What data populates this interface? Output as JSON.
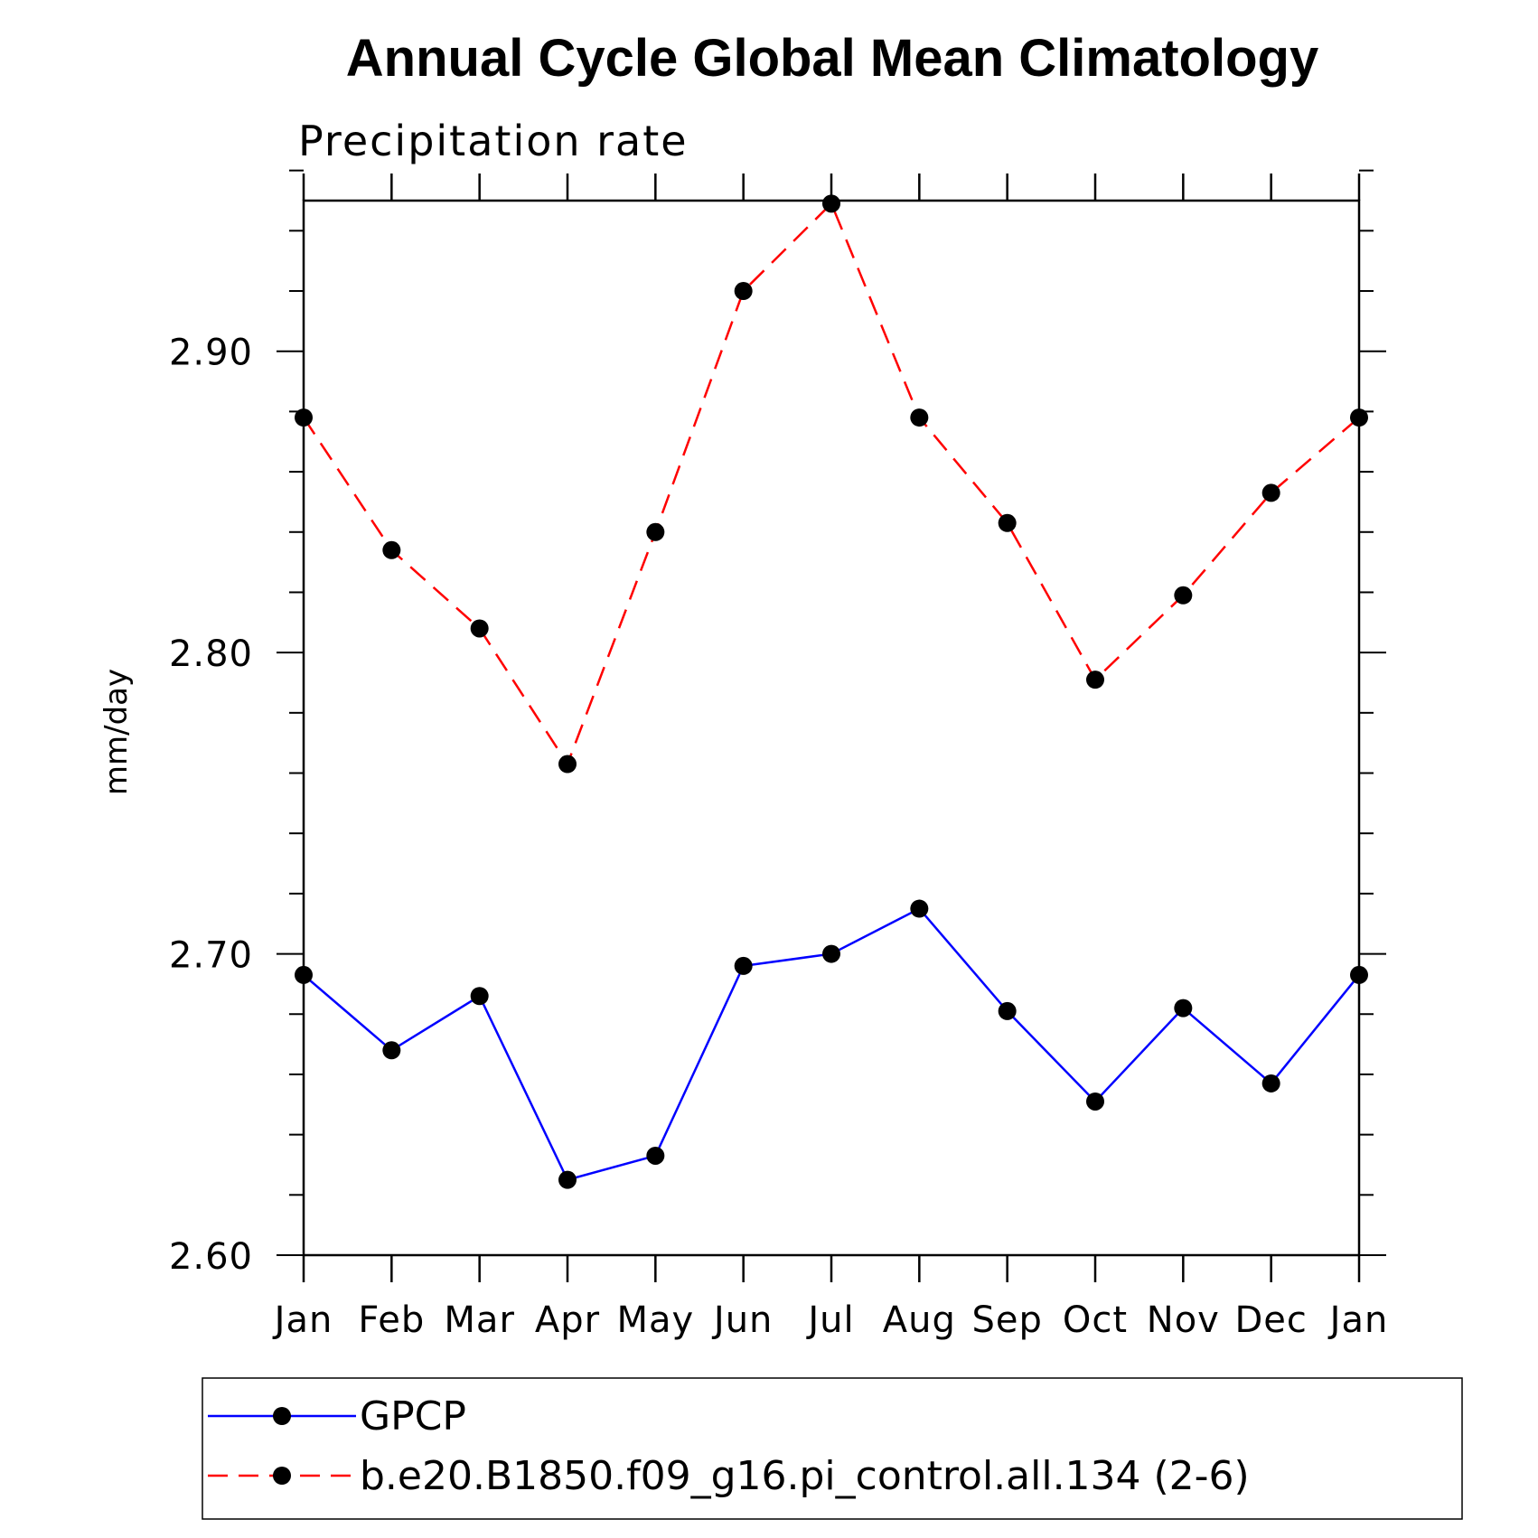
{
  "chart_data": {
    "type": "line",
    "title": "Annual Cycle Global Mean Climatology",
    "subtitle": "Precipitation rate",
    "ylabel": "mm/day",
    "xlabel": "",
    "categories": [
      "Jan",
      "Feb",
      "Mar",
      "Apr",
      "May",
      "Jun",
      "Jul",
      "Aug",
      "Sep",
      "Oct",
      "Nov",
      "Dec",
      "Jan"
    ],
    "ylim": [
      2.6,
      2.95
    ],
    "yticks": [
      2.6,
      2.7,
      2.8,
      2.9
    ],
    "ytick_labels": [
      "2.60",
      "2.70",
      "2.80",
      "2.90"
    ],
    "grid": false,
    "legend_position": "bottom",
    "series": [
      {
        "name": "GPCP",
        "color": "#0000ff",
        "dash": "solid",
        "marker": "filled-circle",
        "values": [
          2.693,
          2.668,
          2.686,
          2.625,
          2.633,
          2.696,
          2.7,
          2.715,
          2.681,
          2.651,
          2.682,
          2.657,
          2.693
        ]
      },
      {
        "name": "b.e20.B1850.f09_g16.pi_control.all.134 (2-6)",
        "color": "#ff0000",
        "dash": "dashed",
        "marker": "filled-circle",
        "values": [
          2.878,
          2.834,
          2.808,
          2.763,
          2.84,
          2.92,
          2.949,
          2.878,
          2.843,
          2.791,
          2.819,
          2.853,
          2.878
        ]
      }
    ]
  }
}
